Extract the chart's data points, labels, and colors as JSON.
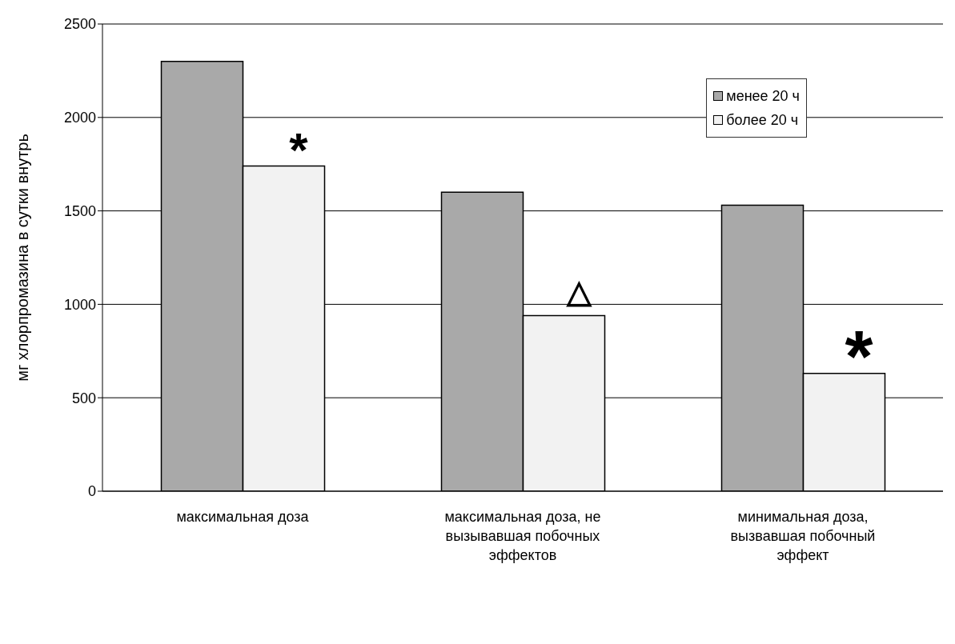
{
  "chart_data": {
    "type": "bar",
    "ylabel": "мг хлорпромазина в сутки внутрь",
    "categories": [
      "максимальная доза",
      "максимальная доза, не вызывавшая побочных эффектов",
      "минимальная доза, вызвавшая побочный эффект"
    ],
    "series": [
      {
        "name": "менее 20 ч",
        "color": "#a9a9a9",
        "values": [
          2300,
          1600,
          1530
        ]
      },
      {
        "name": "более 20 ч",
        "color": "#f2f2f2",
        "values": [
          1740,
          940,
          630
        ]
      }
    ],
    "ylim": [
      0,
      2500
    ],
    "yticks": [
      0,
      500,
      1000,
      1500,
      2000,
      2500
    ],
    "grid": "y",
    "legend": "top right",
    "annotations": [
      {
        "text": "*",
        "x": "максимальная доза",
        "y": 1900
      },
      {
        "text": "△",
        "x": "максимальная доза, не вызывавшая побочных эффектов",
        "y": 1230
      },
      {
        "text": "*",
        "x": "минимальная доза, вызвавшая побочный эффект",
        "y": 920
      }
    ]
  }
}
